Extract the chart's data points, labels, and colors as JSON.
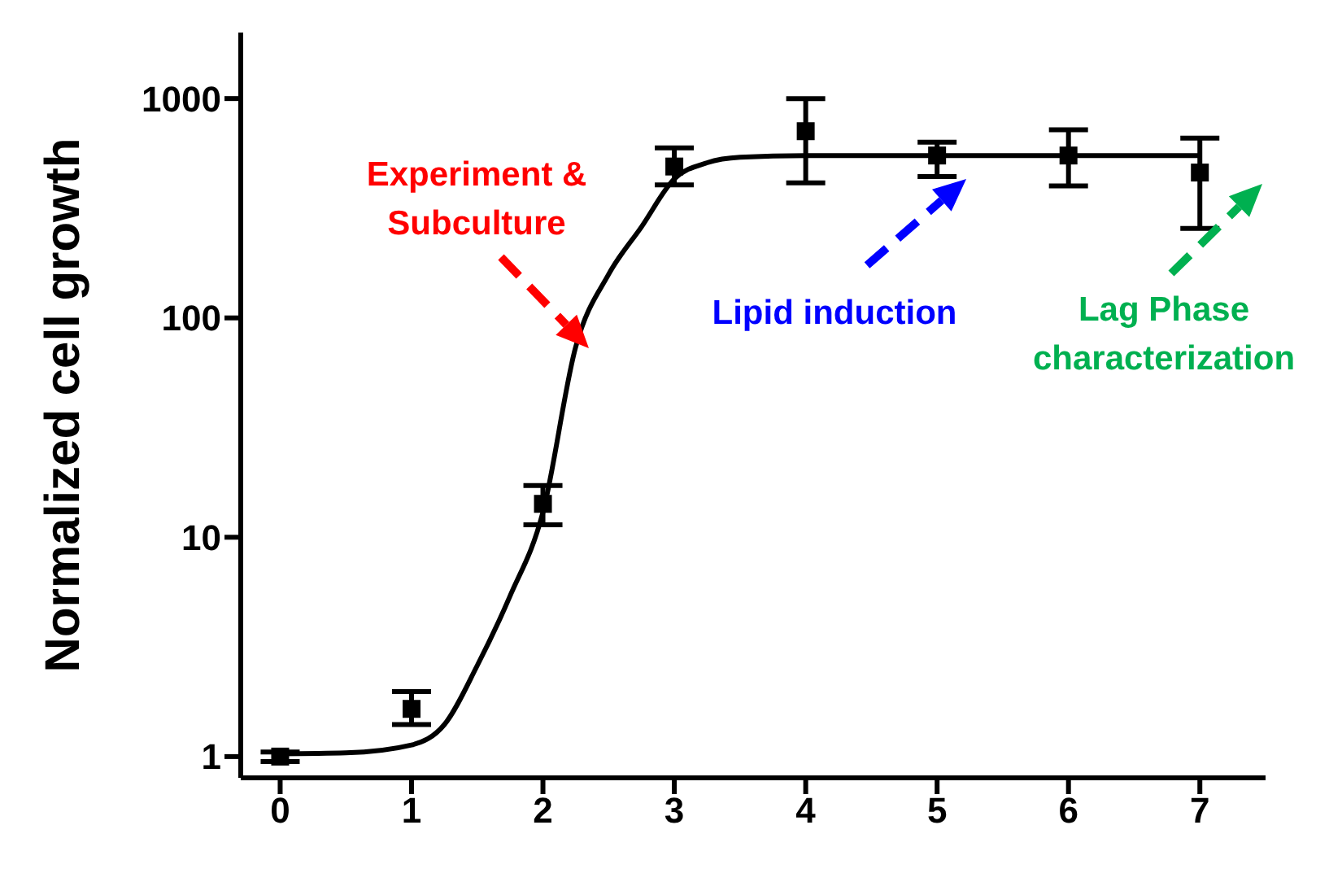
{
  "chart_data": {
    "type": "scatter",
    "ylabel": "Normalized cell growth",
    "log": "y",
    "marker": "square",
    "xlim": [
      -0.3,
      7.5
    ],
    "xticks": [
      0,
      1,
      2,
      3,
      4,
      5,
      6,
      7
    ],
    "ylim": [
      0.8,
      2000
    ],
    "yticks": [
      1,
      10,
      100,
      1000
    ],
    "annotations": [
      "Experiment & Subculture",
      "Lipid induction",
      "Lag Phase characterization"
    ],
    "series": [
      {
        "color": "#000000",
        "x": [
          0,
          1,
          2,
          3,
          4,
          5,
          6,
          7
        ],
        "values": [
          1.0,
          1.65,
          14.2,
          490,
          710,
          550,
          550,
          460
        ],
        "errors": [
          [
            0.95,
            1.05
          ],
          [
            1.4,
            1.98
          ],
          [
            11.4,
            17.2
          ],
          [
            404,
            596
          ],
          [
            413,
            1000
          ],
          [
            441,
            632
          ],
          [
            400,
            720
          ],
          [
            256,
            660
          ]
        ]
      },
      {
        "type": "line",
        "color": "#000000",
        "marker": "none",
        "x": [
          0,
          0.5,
          1,
          1.25,
          1.5,
          1.75,
          2,
          2.25,
          2.5,
          2.75,
          3,
          3.25,
          3.5,
          4,
          5,
          6,
          7
        ],
        "values": [
          1.03,
          1.04,
          1.13,
          1.4,
          2.6,
          5.4,
          13,
          74,
          158,
          260,
          430,
          510,
          540,
          550,
          550,
          550,
          550
        ]
      }
    ]
  }
}
